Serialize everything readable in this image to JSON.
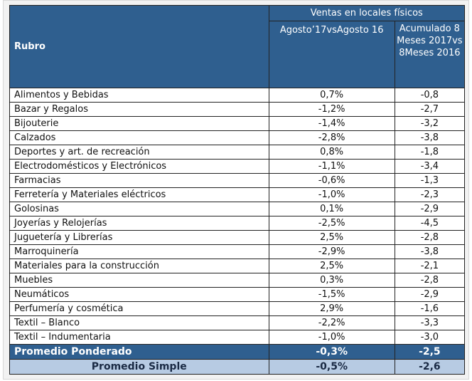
{
  "header": {
    "rubro": "Rubro",
    "group": "Ventas en locales físicos",
    "col1": "Agosto’17vsAgosto 16",
    "col2": "Acumulado 8 Meses 2017vs 8Meses 2016"
  },
  "rows": [
    [
      "Alimentos y Bebidas",
      "0,7%",
      "-0,8"
    ],
    [
      "Bazar y Regalos",
      "-1,2%",
      "-2,7"
    ],
    [
      "Bijouterie",
      "-1,4%",
      "-3,2"
    ],
    [
      "Calzados",
      "-2,8%",
      "-3,8"
    ],
    [
      "Deportes y art. de recreación",
      "0,8%",
      "-1,8"
    ],
    [
      "Electrodomésticos y Electrónicos",
      "-1,1%",
      "-3,4"
    ],
    [
      "Farmacias",
      "-0,6%",
      "-1,3"
    ],
    [
      "Ferretería y Materiales eléctricos",
      "-1,0%",
      "-2,3"
    ],
    [
      "Golosinas",
      "0,1%",
      "-2,9"
    ],
    [
      "Joyerías y Relojerías",
      "-2,5%",
      "-4,5"
    ],
    [
      "Juguetería y Librerías",
      "2,5%",
      "-2,8"
    ],
    [
      "Marroquinería",
      "-2,9%",
      "-3,8"
    ],
    [
      "Materiales para la construcción",
      "2,5%",
      "-2,1"
    ],
    [
      "Muebles",
      "0,3%",
      "-2,8"
    ],
    [
      "Neumáticos",
      "-1,5%",
      "-2,9"
    ],
    [
      "Perfumería y cosmética",
      "2,9%",
      "-1,6"
    ],
    [
      "Textil – Blanco",
      "-2,2%",
      "-3,3"
    ],
    [
      "Textil – Indumentaria",
      "-1,0%",
      "-3,0"
    ]
  ],
  "weighted": [
    "Promedio Ponderado",
    "-0,3%",
    "-2,5"
  ],
  "simple": [
    "Promedio Simple",
    "-0,5%",
    "-2,6"
  ]
}
